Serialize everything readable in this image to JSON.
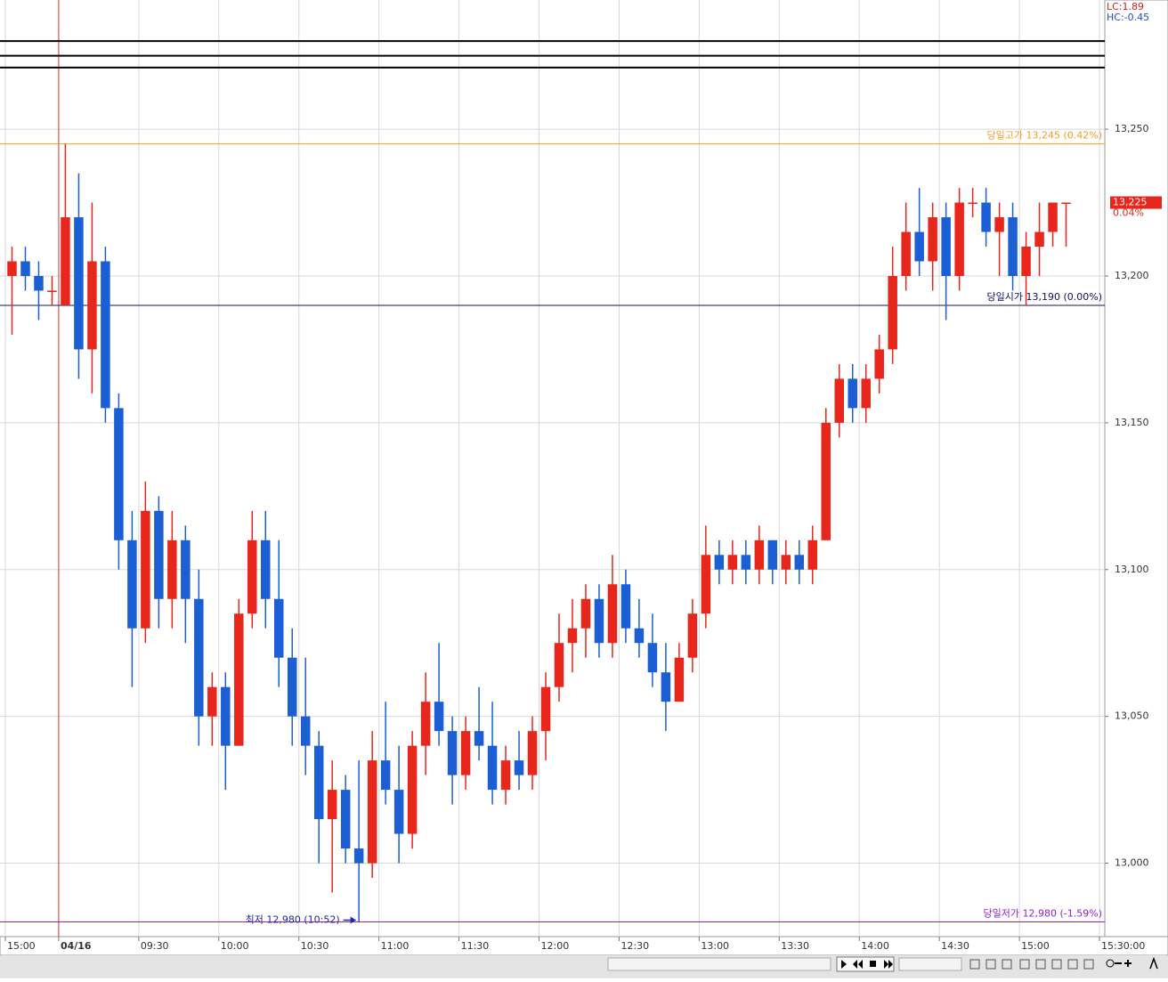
{
  "chart_data": {
    "type": "candlestick",
    "indicators": [
      {
        "text": "LC:1.89",
        "color": "#d02020"
      },
      {
        "text": "HC:-0.45",
        "color": "#2050d0"
      }
    ],
    "x": [
      -20,
      -15,
      -10,
      -5,
      0,
      5,
      10,
      15,
      20,
      25,
      30,
      35,
      40,
      45,
      50,
      55,
      60,
      65,
      70,
      75,
      80,
      85,
      90,
      95,
      100,
      105,
      110,
      115,
      120,
      125,
      130,
      135,
      140,
      145,
      150,
      155,
      160,
      165,
      170,
      175,
      180,
      185,
      190,
      195,
      200,
      205,
      210,
      215,
      220,
      225,
      230,
      235,
      240,
      245,
      250,
      255,
      260,
      265,
      270,
      275,
      280,
      285,
      290,
      295,
      300,
      305,
      310,
      315,
      320,
      325,
      330,
      335,
      340,
      345,
      350,
      355,
      360,
      365,
      370,
      375
    ],
    "ohlc": [
      [
        13200,
        13210,
        13180,
        13205
      ],
      [
        13205,
        13210,
        13195,
        13200
      ],
      [
        13200,
        13205,
        13185,
        13195
      ],
      [
        13195,
        13200,
        13190,
        13195
      ],
      [
        13190,
        13245,
        13190,
        13220
      ],
      [
        13220,
        13235,
        13165,
        13175
      ],
      [
        13175,
        13225,
        13160,
        13205
      ],
      [
        13205,
        13210,
        13150,
        13155
      ],
      [
        13155,
        13160,
        13100,
        13110
      ],
      [
        13110,
        13120,
        13060,
        13080
      ],
      [
        13080,
        13130,
        13075,
        13120
      ],
      [
        13120,
        13125,
        13080,
        13090
      ],
      [
        13090,
        13120,
        13080,
        13110
      ],
      [
        13110,
        13115,
        13075,
        13090
      ],
      [
        13090,
        13100,
        13040,
        13050
      ],
      [
        13050,
        13065,
        13040,
        13060
      ],
      [
        13060,
        13065,
        13025,
        13040
      ],
      [
        13040,
        13090,
        13040,
        13085
      ],
      [
        13085,
        13120,
        13080,
        13110
      ],
      [
        13110,
        13120,
        13080,
        13090
      ],
      [
        13090,
        13110,
        13060,
        13070
      ],
      [
        13070,
        13080,
        13040,
        13050
      ],
      [
        13050,
        13070,
        13030,
        13040
      ],
      [
        13040,
        13045,
        13000,
        13015
      ],
      [
        13015,
        13035,
        12990,
        13025
      ],
      [
        13025,
        13030,
        13000,
        13005
      ],
      [
        13005,
        13035,
        12980,
        13000
      ],
      [
        13000,
        13045,
        12995,
        13035
      ],
      [
        13035,
        13055,
        13020,
        13025
      ],
      [
        13025,
        13040,
        13000,
        13010
      ],
      [
        13010,
        13045,
        13005,
        13040
      ],
      [
        13040,
        13065,
        13030,
        13055
      ],
      [
        13055,
        13075,
        13040,
        13045
      ],
      [
        13045,
        13050,
        13020,
        13030
      ],
      [
        13030,
        13050,
        13025,
        13045
      ],
      [
        13045,
        13060,
        13035,
        13040
      ],
      [
        13040,
        13055,
        13020,
        13025
      ],
      [
        13025,
        13040,
        13020,
        13035
      ],
      [
        13035,
        13045,
        13025,
        13030
      ],
      [
        13030,
        13050,
        13025,
        13045
      ],
      [
        13045,
        13065,
        13035,
        13060
      ],
      [
        13060,
        13085,
        13055,
        13075
      ],
      [
        13075,
        13090,
        13065,
        13080
      ],
      [
        13080,
        13095,
        13070,
        13090
      ],
      [
        13090,
        13095,
        13070,
        13075
      ],
      [
        13075,
        13105,
        13070,
        13095
      ],
      [
        13095,
        13100,
        13075,
        13080
      ],
      [
        13080,
        13090,
        13070,
        13075
      ],
      [
        13075,
        13085,
        13060,
        13065
      ],
      [
        13065,
        13075,
        13045,
        13055
      ],
      [
        13055,
        13075,
        13055,
        13070
      ],
      [
        13070,
        13090,
        13065,
        13085
      ],
      [
        13085,
        13115,
        13080,
        13105
      ],
      [
        13105,
        13110,
        13095,
        13100
      ],
      [
        13100,
        13110,
        13095,
        13105
      ],
      [
        13105,
        13110,
        13095,
        13100
      ],
      [
        13100,
        13115,
        13095,
        13110
      ],
      [
        13110,
        13110,
        13095,
        13100
      ],
      [
        13100,
        13110,
        13095,
        13105
      ],
      [
        13105,
        13110,
        13095,
        13100
      ],
      [
        13100,
        13115,
        13095,
        13110
      ],
      [
        13110,
        13155,
        13110,
        13150
      ],
      [
        13150,
        13170,
        13145,
        13165
      ],
      [
        13165,
        13170,
        13150,
        13155
      ],
      [
        13155,
        13170,
        13150,
        13165
      ],
      [
        13165,
        13180,
        13160,
        13175
      ],
      [
        13175,
        13210,
        13170,
        13200
      ],
      [
        13200,
        13225,
        13195,
        13215
      ],
      [
        13215,
        13230,
        13200,
        13205
      ],
      [
        13205,
        13225,
        13195,
        13220
      ],
      [
        13220,
        13225,
        13185,
        13200
      ],
      [
        13200,
        13230,
        13195,
        13225
      ],
      [
        13225,
        13230,
        13220,
        13225
      ],
      [
        13225,
        13230,
        13210,
        13215
      ],
      [
        13215,
        13225,
        13200,
        13220
      ],
      [
        13220,
        13225,
        13195,
        13200
      ],
      [
        13200,
        13215,
        13190,
        13210
      ],
      [
        13210,
        13225,
        13200,
        13215
      ],
      [
        13215,
        13225,
        13210,
        13225
      ],
      [
        13225,
        13225,
        13210,
        13225
      ]
    ],
    "up_color": "#e8261c",
    "down_color": "#1c5fd4",
    "xlim": [
      -22,
      392
    ],
    "xticks": [
      {
        "value": -20,
        "label": "15:00"
      },
      {
        "value": 0,
        "label": "04/16"
      },
      {
        "value": 30,
        "label": "09:30"
      },
      {
        "value": 60,
        "label": "10:00"
      },
      {
        "value": 90,
        "label": "10:30"
      },
      {
        "value": 120,
        "label": "11:00"
      },
      {
        "value": 150,
        "label": "11:30"
      },
      {
        "value": 180,
        "label": "12:00"
      },
      {
        "value": 210,
        "label": "12:30"
      },
      {
        "value": 240,
        "label": "13:00"
      },
      {
        "value": 270,
        "label": "13:30"
      },
      {
        "value": 300,
        "label": "14:00"
      },
      {
        "value": 330,
        "label": "14:30"
      },
      {
        "value": 360,
        "label": "15:00"
      },
      {
        "value": 390,
        "label": "15:30:00"
      }
    ],
    "ylim": [
      12975,
      13294
    ],
    "yticks": [
      {
        "value": 13000,
        "label": "13,000"
      },
      {
        "value": 13050,
        "label": "13,050"
      },
      {
        "value": 13100,
        "label": "13,100"
      },
      {
        "value": 13150,
        "label": "13,150"
      },
      {
        "value": 13200,
        "label": "13,200"
      },
      {
        "value": 13250,
        "label": "13,250"
      }
    ],
    "grid": true,
    "day_start": 0,
    "day_start_color": "#e03030",
    "bands": [
      13280,
      13275,
      13271
    ],
    "reference_lines": [
      {
        "value": 13245,
        "label": "당일고가 13,245 (0.42%)",
        "color": "#f0a020"
      },
      {
        "value": 13190,
        "label": "당일시가 13,190 (0.00%)",
        "color": "#101060"
      },
      {
        "value": 12980,
        "label": "당일저가 12,980 (-1.59%)",
        "color": "#9020d0"
      }
    ],
    "current_price": {
      "value": 13225,
      "label": "13,225",
      "change": "0.04%"
    },
    "low_annotation": {
      "text": "최저 12,980 (10:52)",
      "x": 112,
      "y": 12980
    }
  }
}
